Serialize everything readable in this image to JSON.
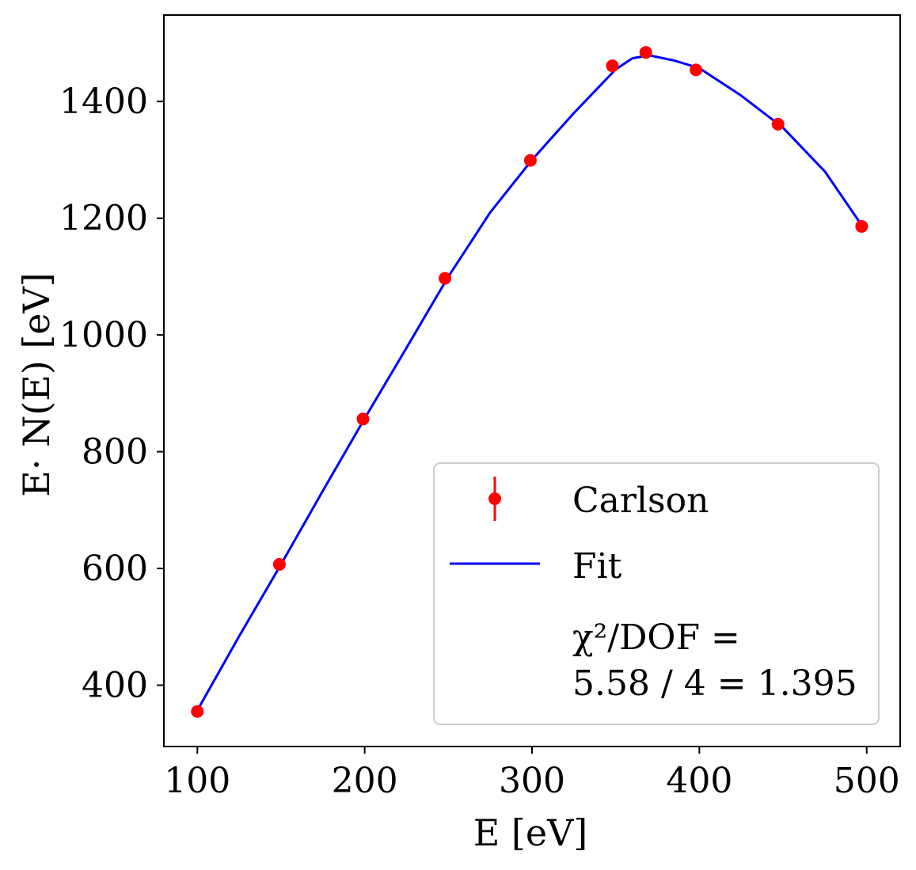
{
  "chart_data": {
    "type": "scatter",
    "title": "",
    "xlabel": "E [eV]",
    "ylabel": "E· N(E) [eV]",
    "xlim": [
      80,
      520
    ],
    "ylim": [
      295,
      1548
    ],
    "xticks": [
      100,
      200,
      300,
      400,
      500
    ],
    "yticks": [
      400,
      600,
      800,
      1000,
      1200,
      1400
    ],
    "grid": false,
    "legend_position": "lower-right",
    "colors": {
      "data": "#ff0000",
      "fit": "#0000ff"
    },
    "series": [
      {
        "name": "Carlson",
        "kind": "errorbar-points",
        "x": [
          100,
          149,
          199,
          248,
          299,
          348,
          368,
          398,
          447,
          497
        ],
        "y": [
          355,
          607,
          856,
          1097,
          1299,
          1461,
          1484,
          1454,
          1361,
          1186
        ]
      },
      {
        "name": "Fit",
        "kind": "line",
        "x": [
          100,
          125,
          150,
          175,
          200,
          225,
          250,
          275,
          300,
          325,
          350,
          360,
          370,
          385,
          400,
          425,
          450,
          475,
          497
        ],
        "y": [
          357,
          484,
          607,
          733,
          857,
          978,
          1100,
          1210,
          1300,
          1380,
          1455,
          1474,
          1479,
          1470,
          1457,
          1410,
          1355,
          1280,
          1188
        ]
      }
    ],
    "annotations": [
      "χ²/DOF =",
      "5.58 / 4 = 1.395"
    ]
  }
}
